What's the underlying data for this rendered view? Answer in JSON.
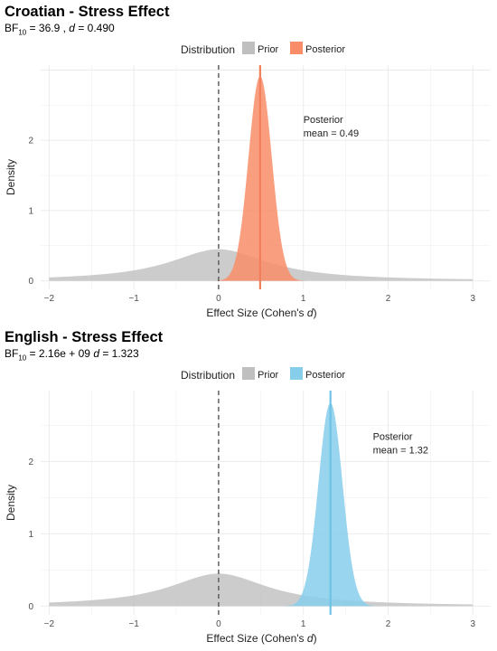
{
  "chart_data": [
    {
      "type": "area",
      "title": "Croatian - Stress Effect",
      "subtitle": {
        "bf_prefix": "BF",
        "bf_sub": "10",
        "bf_text": " = 36.9 ,  ",
        "d_label": "d",
        "d_text": " = 0.490"
      },
      "xlabel": "Effect Size (Cohen's ",
      "xlabel_italic": "d",
      "xlabel_close": ")",
      "ylabel": "Density",
      "xlim": [
        -2.1,
        3.2
      ],
      "ylim": [
        -0.12,
        3.07
      ],
      "x_ticks": [
        -2,
        -1,
        0,
        1,
        2,
        3
      ],
      "y_ticks": [
        0,
        1,
        2
      ],
      "legend": {
        "title": "Distribution",
        "position": "top",
        "items": [
          {
            "name": "Prior",
            "color": "#bfbfbf"
          },
          {
            "name": "Posterior",
            "color": "#f88d68"
          }
        ]
      },
      "prior": {
        "type": "cauchy",
        "location": 0,
        "scale": 0.707,
        "x_range": [
          -2,
          3
        ],
        "peak": 0.45
      },
      "posterior": {
        "mean": 0.49,
        "sd": 0.137,
        "color": "#f88d68",
        "line_color": "#f2805c"
      },
      "annotation": {
        "line1": "Posterior",
        "line2": "mean = 0.49",
        "x": 1.0,
        "y": 2.3
      },
      "reference_line_x": 0,
      "grid": true
    },
    {
      "type": "area",
      "title": "English - Stress Effect",
      "subtitle": {
        "bf_prefix": "BF",
        "bf_sub": "10",
        "bf_text": " =  2.16e  + 09   ",
        "d_label": "d",
        "d_text": " = 1.323"
      },
      "xlabel": "Effect Size (Cohen's ",
      "xlabel_italic": "d",
      "xlabel_close": ")",
      "ylabel": "Density",
      "xlim": [
        -2.1,
        3.2
      ],
      "ylim": [
        -0.12,
        2.98
      ],
      "x_ticks": [
        -2,
        -1,
        0,
        1,
        2,
        3
      ],
      "y_ticks": [
        0,
        1,
        2
      ],
      "legend": {
        "title": "Distribution",
        "position": "top",
        "items": [
          {
            "name": "Prior",
            "color": "#bfbfbf"
          },
          {
            "name": "Posterior",
            "color": "#87ceeb"
          }
        ]
      },
      "prior": {
        "type": "cauchy",
        "location": 0,
        "scale": 0.707,
        "x_range": [
          -2,
          3
        ],
        "peak": 0.45
      },
      "posterior": {
        "mean": 1.32,
        "sd": 0.142,
        "color": "#87ceeb",
        "line_color": "#6fc3e6"
      },
      "annotation": {
        "line1": "Posterior",
        "line2": "mean = 1.32",
        "x": 1.82,
        "y": 2.35
      },
      "reference_line_x": 0,
      "grid": true
    }
  ]
}
